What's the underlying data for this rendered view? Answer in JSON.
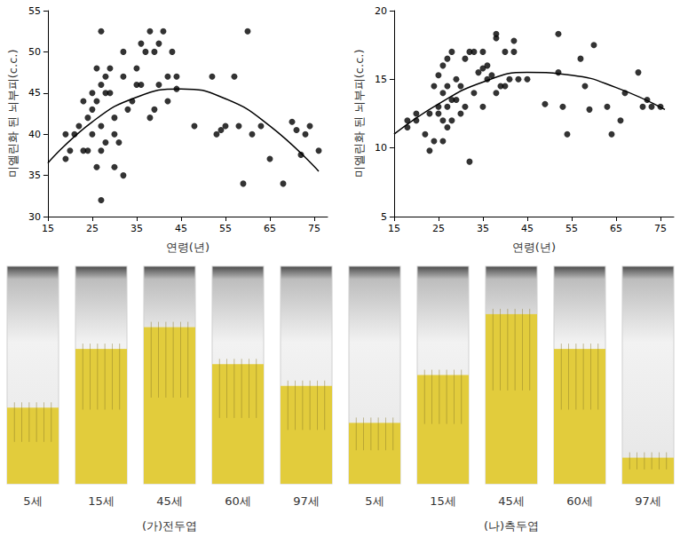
{
  "chart_data": [
    {
      "type": "scatter",
      "x_label": "연령(년)",
      "y_label": "미엘린화 된 뇌부피(c.c.)",
      "color": "#000000",
      "grid": false,
      "xlim": [
        15,
        78
      ],
      "xticks": [
        15,
        25,
        35,
        45,
        55,
        65,
        75
      ],
      "ylim": [
        30,
        55
      ],
      "yticks": [
        30,
        35,
        40,
        45,
        50,
        55
      ],
      "x": [
        19,
        19,
        20,
        21,
        22,
        23,
        23,
        24,
        24,
        25,
        25,
        25,
        26,
        26,
        26,
        27,
        27,
        27,
        27,
        27,
        28,
        28,
        28,
        29,
        29,
        30,
        30,
        30,
        31,
        32,
        32,
        32,
        33,
        34,
        35,
        35,
        36,
        36,
        37,
        38,
        38,
        39,
        39,
        40,
        40,
        41,
        42,
        42,
        43,
        44,
        44,
        48,
        52,
        53,
        54,
        55,
        57,
        58,
        59,
        60,
        61,
        63,
        65,
        68,
        70,
        71,
        72,
        73,
        74,
        76
      ],
      "values": [
        37,
        40,
        38,
        40,
        41,
        38,
        44,
        38,
        42,
        40,
        43,
        45,
        36,
        44,
        48,
        32,
        38,
        41,
        46,
        52.5,
        39,
        45,
        47,
        45,
        48,
        36,
        40,
        42,
        39,
        35,
        47,
        50,
        43,
        44,
        46,
        48,
        46,
        51,
        50,
        42,
        52.5,
        43,
        50,
        46,
        51,
        52.5,
        44,
        47,
        50,
        47,
        45.5,
        41,
        47,
        40,
        40.5,
        41,
        47,
        41,
        34,
        52.5,
        40,
        41,
        37,
        34,
        41.5,
        40.5,
        37.5,
        40,
        41,
        38
      ],
      "fit": {
        "x": [
          15,
          25,
          35,
          45,
          55,
          65,
          76
        ],
        "values": [
          36.5,
          41.5,
          44.5,
          45.5,
          44.3,
          41,
          35.5
        ]
      }
    },
    {
      "type": "scatter",
      "x_label": "연령(년)",
      "y_label": "미엘린화 된 뇌부피(c.c.)",
      "color": "#000000",
      "grid": false,
      "xlim": [
        15,
        78
      ],
      "xticks": [
        15,
        25,
        35,
        45,
        55,
        65,
        75
      ],
      "ylim": [
        5,
        20
      ],
      "yticks": [
        5,
        10,
        15,
        20
      ],
      "x": [
        18,
        18,
        20,
        20,
        22,
        23,
        23,
        24,
        24,
        25,
        25,
        25,
        26,
        26,
        26,
        26,
        27,
        27,
        27,
        27,
        28,
        28,
        28,
        29,
        29,
        30,
        30,
        31,
        31,
        32,
        32,
        33,
        33,
        34,
        35,
        35,
        35,
        36,
        36,
        37,
        38,
        38,
        38,
        39,
        40,
        40,
        41,
        42,
        42,
        43,
        45,
        49,
        52,
        52,
        53,
        54,
        57,
        58,
        59,
        60,
        63,
        64,
        66,
        67,
        70,
        71,
        72,
        73,
        75
      ],
      "values": [
        11.5,
        12,
        12,
        12.5,
        11,
        9.8,
        12.5,
        10.5,
        14.5,
        12.5,
        13,
        15.3,
        10.5,
        12,
        14,
        16,
        11.5,
        13,
        14.5,
        16.5,
        12,
        13.5,
        17,
        13.5,
        15,
        12.5,
        14.5,
        13,
        16.5,
        9,
        17,
        14,
        17,
        15.5,
        13,
        15.8,
        17,
        15,
        16,
        15.3,
        14,
        18.3,
        18,
        14.5,
        14.5,
        17,
        15,
        17.8,
        17,
        15,
        15,
        13.2,
        15.5,
        18.3,
        13,
        11,
        16.5,
        14.5,
        12.8,
        17.5,
        13,
        11,
        12,
        14,
        15.5,
        13,
        13.5,
        13,
        13
      ],
      "fit": {
        "x": [
          15,
          25,
          35,
          45,
          55,
          65,
          76
        ],
        "values": [
          11,
          13.2,
          14.8,
          15.5,
          15.3,
          14.4,
          12.8
        ]
      }
    }
  ],
  "histology": {
    "color": "#e2cc3c",
    "groups": [
      {
        "label": "(가)전두엽",
        "sections": [
          {
            "label": "5세",
            "stain_fraction": 0.35
          },
          {
            "label": "15세",
            "stain_fraction": 0.62
          },
          {
            "label": "45세",
            "stain_fraction": 0.72
          },
          {
            "label": "60세",
            "stain_fraction": 0.55
          },
          {
            "label": "97세",
            "stain_fraction": 0.45
          }
        ]
      },
      {
        "label": "(나)측두엽",
        "sections": [
          {
            "label": "5세",
            "stain_fraction": 0.28
          },
          {
            "label": "15세",
            "stain_fraction": 0.5
          },
          {
            "label": "45세",
            "stain_fraction": 0.78
          },
          {
            "label": "60세",
            "stain_fraction": 0.62
          },
          {
            "label": "97세",
            "stain_fraction": 0.12
          }
        ]
      }
    ]
  }
}
